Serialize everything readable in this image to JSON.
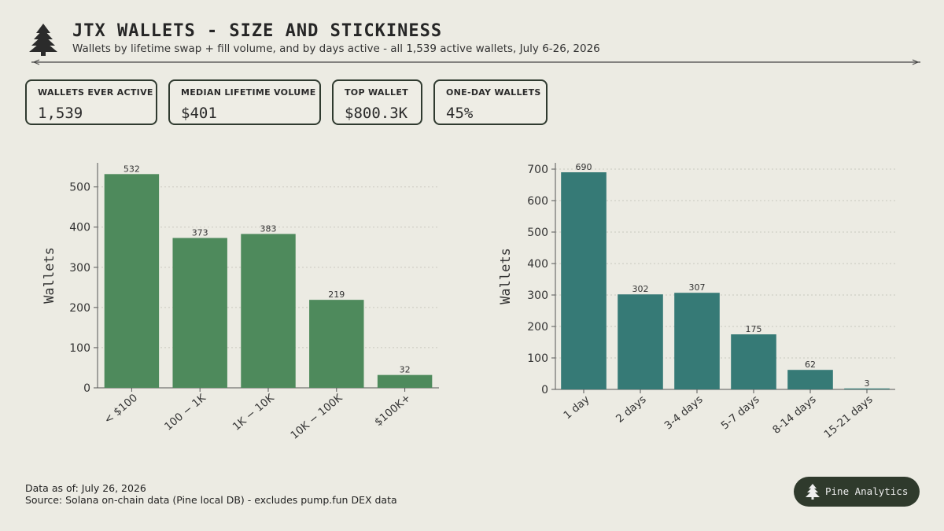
{
  "header": {
    "title": "JTX WALLETS - SIZE AND STICKINESS",
    "subtitle": "Wallets by lifetime swap + fill volume, and by days active - all 1,539 active wallets, July 6-26, 2026",
    "logo_icon": "pine-tree-icon"
  },
  "kpis": [
    {
      "label": "WALLETS EVER ACTIVE",
      "value": "1,539"
    },
    {
      "label": "MEDIAN LIFETIME VOLUME",
      "value": "$401"
    },
    {
      "label": "TOP WALLET",
      "value": "$800.3K"
    },
    {
      "label": "ONE-DAY WALLETS",
      "value": "45%"
    }
  ],
  "chart_data": [
    {
      "type": "bar",
      "categories": [
        "< $100",
        "100 − 1K",
        "1K − 10K",
        "10K − 100K",
        "$100K+"
      ],
      "values": [
        532,
        373,
        383,
        219,
        32
      ],
      "ylabel": "Wallets",
      "ylim": [
        0,
        560
      ],
      "yticks": [
        0,
        100,
        200,
        300,
        400,
        500
      ],
      "color": "#4e8a5c",
      "grid": true
    },
    {
      "type": "bar",
      "categories": [
        "1 day",
        "2 days",
        "3-4 days",
        "5-7 days",
        "8-14 days",
        "15-21 days"
      ],
      "values": [
        690,
        302,
        307,
        175,
        62,
        3
      ],
      "ylabel": "Wallets",
      "ylim": [
        0,
        720
      ],
      "yticks": [
        0,
        100,
        200,
        300,
        400,
        500,
        600,
        700
      ],
      "color": "#367a76",
      "grid": true
    }
  ],
  "footer": {
    "as_of": "Data as of: July 26, 2026",
    "source": "Source: Solana on-chain data (Pine local DB) - excludes pump.fun DEX data",
    "brand": "Pine Analytics",
    "brand_icon": "pine-tree-icon"
  },
  "colors": {
    "background": "#ecebe3",
    "text": "#2f2f2f",
    "badge_bg": "#2f3a2c"
  }
}
